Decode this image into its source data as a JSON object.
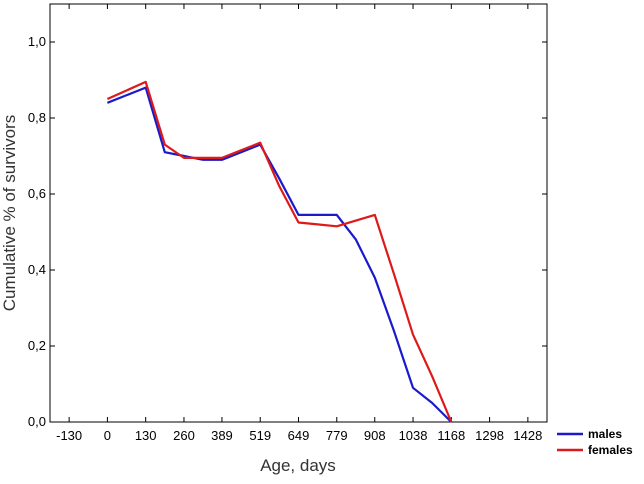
{
  "chart_data": {
    "type": "line",
    "title": "",
    "xlabel": "Age, days",
    "ylabel": "Cumulative % of survivors",
    "x_ticks": [
      -130,
      0,
      130,
      260,
      389,
      519,
      649,
      779,
      908,
      1038,
      1168,
      1298,
      1428
    ],
    "x_tick_labels": [
      "-130",
      "0",
      "130",
      "260",
      "389",
      "519",
      "649",
      "779",
      "908",
      "1038",
      "1168",
      "1298",
      "1428"
    ],
    "y_ticks": [
      0.0,
      0.2,
      0.4,
      0.6,
      0.8,
      1.0
    ],
    "y_tick_labels": [
      "0,0",
      "0,2",
      "0,4",
      "0,6",
      "0,8",
      "1,0"
    ],
    "xlim": [
      -195,
      1493
    ],
    "ylim": [
      0,
      1.1
    ],
    "grid": false,
    "legend_position": "bottom-right-outside",
    "series": [
      {
        "name": "males",
        "color": "#1a1acc",
        "x": [
          0,
          130,
          195,
          260,
          325,
          389,
          454,
          519,
          584,
          649,
          714,
          779,
          844,
          908,
          973,
          1038,
          1103,
          1168
        ],
        "y": [
          0.84,
          0.88,
          0.71,
          0.7,
          0.69,
          0.69,
          0.71,
          0.73,
          0.64,
          0.545,
          0.545,
          0.545,
          0.48,
          0.38,
          0.24,
          0.09,
          0.05,
          0.0
        ]
      },
      {
        "name": "females",
        "color": "#dd1a1a",
        "x": [
          0,
          130,
          195,
          260,
          325,
          389,
          454,
          519,
          584,
          649,
          714,
          779,
          844,
          908,
          973,
          1038,
          1103,
          1168
        ],
        "y": [
          0.85,
          0.895,
          0.73,
          0.695,
          0.695,
          0.695,
          0.715,
          0.735,
          0.62,
          0.525,
          0.52,
          0.515,
          0.53,
          0.545,
          0.39,
          0.23,
          0.12,
          0.0
        ]
      }
    ]
  }
}
